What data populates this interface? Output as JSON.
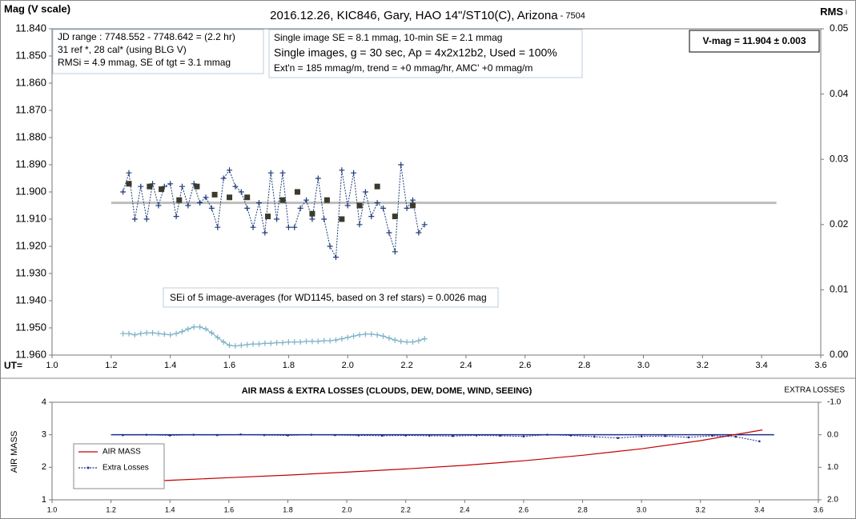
{
  "chart_data": [
    {
      "type": "line",
      "title": "2016.12.26, KIC846, Gary, HAO 14\"/ST10(C), Arizona",
      "title_suffix": " - 7504",
      "ylabel": "Mag (V scale)",
      "y2label": "RMS",
      "y2label_suffix": "i",
      "xlabel": "UT=",
      "xlim": [
        1.0,
        3.6
      ],
      "xticks": [
        {
          "value": 1.0,
          "label": "1.0"
        },
        1.2,
        1.4,
        1.6,
        1.8,
        {
          "value": 2.0,
          "label": "2.0"
        },
        2.2,
        2.4,
        2.6,
        2.8,
        {
          "value": 3.0,
          "label": "3.0"
        },
        3.2,
        3.4,
        3.6
      ],
      "ylim": [
        11.84,
        11.96
      ],
      "yinvert": true,
      "yticks": [
        {
          "value": 11.84,
          "label": "11.840"
        },
        {
          "value": 11.85,
          "label": "11.850"
        },
        {
          "value": 11.86,
          "label": "11.860"
        },
        {
          "value": 11.87,
          "label": "11.870"
        },
        {
          "value": 11.88,
          "label": "11.880"
        },
        {
          "value": 11.89,
          "label": "11.890"
        },
        {
          "value": 11.9,
          "label": "11.900"
        },
        {
          "value": 11.91,
          "label": "11.910"
        },
        {
          "value": 11.92,
          "label": "11.920"
        },
        {
          "value": 11.93,
          "label": "11.930"
        },
        {
          "value": 11.94,
          "label": "11.940"
        },
        {
          "value": 11.95,
          "label": "11.950"
        },
        {
          "value": 11.96,
          "label": "11.960"
        }
      ],
      "y2lim": [
        0,
        0.05
      ],
      "y2ticks": [
        {
          "value": 0,
          "label": "0.00"
        },
        0.01,
        0.02,
        0.03,
        0.04,
        0.05
      ],
      "grid": false,
      "x": [
        1.24,
        1.26,
        1.28,
        1.3,
        1.32,
        1.34,
        1.36,
        1.38,
        1.4,
        1.42,
        1.44,
        1.46,
        1.48,
        1.5,
        1.52,
        1.54,
        1.56,
        1.58,
        1.6,
        1.62,
        1.64,
        1.66,
        1.68,
        1.7,
        1.72,
        1.74,
        1.76,
        1.78,
        1.8,
        1.82,
        1.84,
        1.86,
        1.88,
        1.9,
        1.92,
        1.94,
        1.96,
        1.98,
        2.0,
        2.02,
        2.04,
        2.06,
        2.08,
        2.1,
        2.12,
        2.14,
        2.16,
        2.18,
        2.2,
        2.22,
        2.24,
        2.26
      ],
      "series": [
        {
          "color": "#1f3c7a",
          "marker": "plus",
          "line": "dotted",
          "axis": "y",
          "values": [
            11.9,
            11.893,
            11.91,
            11.898,
            11.91,
            11.897,
            11.905,
            11.898,
            11.897,
            11.909,
            11.898,
            11.905,
            11.897,
            11.904,
            11.902,
            11.906,
            11.913,
            11.895,
            11.892,
            11.898,
            11.9,
            11.906,
            11.913,
            11.904,
            11.915,
            11.893,
            11.91,
            11.893,
            11.913,
            11.913,
            11.906,
            11.903,
            11.91,
            11.895,
            11.91,
            11.92,
            11.924,
            11.892,
            11.905,
            11.893,
            11.912,
            11.9,
            11.909,
            11.904,
            11.906,
            11.915,
            11.922,
            11.89,
            11.906,
            11.903,
            11.915,
            11.912
          ]
        },
        {
          "color": "#3b3a2c",
          "marker": "square",
          "line": "none",
          "axis": "y",
          "x": [
            1.26,
            1.33,
            1.37,
            1.43,
            1.49,
            1.55,
            1.6,
            1.66,
            1.73,
            1.78,
            1.83,
            1.88,
            1.93,
            1.98,
            2.04,
            2.1,
            2.16,
            2.22
          ],
          "values": [
            11.897,
            11.898,
            11.899,
            11.903,
            11.898,
            11.901,
            11.902,
            11.902,
            11.909,
            11.903,
            11.9,
            11.908,
            11.903,
            11.91,
            11.905,
            11.898,
            11.909,
            11.905
          ]
        },
        {
          "color": "#7fb3c8",
          "marker": "plus",
          "line": "solid",
          "axis": "y2",
          "values": [
            0.0033,
            0.0033,
            0.0031,
            0.0033,
            0.0034,
            0.0034,
            0.0033,
            0.0032,
            0.0031,
            0.0033,
            0.0036,
            0.004,
            0.0043,
            0.0043,
            0.004,
            0.0034,
            0.0027,
            0.002,
            0.0015,
            0.0014,
            0.0015,
            0.0016,
            0.0017,
            0.0017,
            0.0018,
            0.0018,
            0.0019,
            0.0019,
            0.002,
            0.002,
            0.002,
            0.0021,
            0.0021,
            0.0021,
            0.0022,
            0.0022,
            0.0023,
            0.0025,
            0.0027,
            0.0029,
            0.0031,
            0.0032,
            0.0032,
            0.0031,
            0.0029,
            0.0026,
            0.0023,
            0.0021,
            0.002,
            0.002,
            0.0022,
            0.0025
          ]
        }
      ],
      "reference_line": {
        "x": [
          1.2,
          3.45
        ],
        "value": 11.904,
        "color": "#bdbdbd",
        "axis": "y"
      },
      "annotations": {
        "box1": [
          "JD range  : 7748.552 - 7748.642 = (2.2 hr)",
          "31 ref *, 28 cal* (using BLG V)",
          "RMSi = 4.9 mmag, SE of tgt = 3.1 mmag"
        ],
        "box2": [
          "Single image SE = 8.1 mmag, 10-min SE = 2.1 mmag",
          "Single images, g = 30 sec, Ap = 4x2x12b2, Used = 100%",
          "Ext'n = 185 mmag/m, trend = +0 mmag/hr, AMC' +0 mmag/m"
        ],
        "vmag": "V-mag = 11.904 ± 0.003",
        "sei": "SEi of 5 image-averages (for WD1145, based on 3 ref stars) = 0.0026 mag"
      }
    },
    {
      "type": "line",
      "title": "AIR MASS & EXTRA LOSSES (CLOUDS, DEW, DOME, WIND, SEEING)",
      "ylabel": "AIR MASS",
      "y2label": "EXTRA LOSSES",
      "xlim": [
        1.0,
        3.6
      ],
      "xticks": [
        {
          "value": 1.0,
          "label": "1.0"
        },
        1.2,
        1.4,
        1.6,
        1.8,
        {
          "value": 2.0,
          "label": "2.0"
        },
        2.2,
        2.4,
        2.6,
        2.8,
        {
          "value": 3.0,
          "label": "3.0"
        },
        3.2,
        3.4,
        3.6
      ],
      "ylim": [
        1,
        4
      ],
      "yticks": [
        1,
        2,
        3,
        4
      ],
      "y2lim": [
        -1.0,
        2.0
      ],
      "y2invert": true,
      "y2ticks": [
        {
          "value": -1.0,
          "label": "-1.0"
        },
        {
          "value": 0,
          "label": "0.0"
        },
        {
          "value": 1.0,
          "label": "1.0"
        },
        {
          "value": 2.0,
          "label": "2.0"
        }
      ],
      "grid": false,
      "legend": "bottom-left",
      "series": [
        {
          "name": "AIR MASS",
          "color": "#c00000",
          "marker": "none",
          "line": "solid",
          "axis": "y",
          "x": [
            1.24,
            1.4,
            1.6,
            1.8,
            2.0,
            2.2,
            2.4,
            2.6,
            2.8,
            3.0,
            3.2,
            3.41
          ],
          "values": [
            1.53,
            1.6,
            1.68,
            1.76,
            1.85,
            1.95,
            2.06,
            2.2,
            2.37,
            2.57,
            2.82,
            3.15
          ]
        },
        {
          "name": "Extra Losses",
          "color": "#1f2f8a",
          "marker": "dot",
          "line": "dotted",
          "axis": "y2",
          "x": [
            1.24,
            1.32,
            1.4,
            1.48,
            1.56,
            1.64,
            1.72,
            1.8,
            1.88,
            1.96,
            2.04,
            2.12,
            2.2,
            2.28,
            2.36,
            2.44,
            2.52,
            2.6,
            2.68,
            2.76,
            2.84,
            2.92,
            3.0,
            3.08,
            3.16,
            3.24,
            3.32,
            3.4
          ],
          "values": [
            0.01,
            0.0,
            0.02,
            0.0,
            0.01,
            -0.01,
            0.01,
            0.02,
            0.0,
            0.01,
            0.02,
            0.03,
            0.02,
            0.03,
            0.04,
            0.02,
            0.03,
            0.05,
            0.0,
            0.02,
            0.06,
            0.1,
            0.05,
            0.04,
            0.08,
            0.03,
            0.06,
            0.2
          ]
        }
      ],
      "reference_line": {
        "x": [
          1.2,
          3.45
        ],
        "value": 0,
        "color": "#1f2f8a",
        "axis": "y2"
      }
    }
  ]
}
